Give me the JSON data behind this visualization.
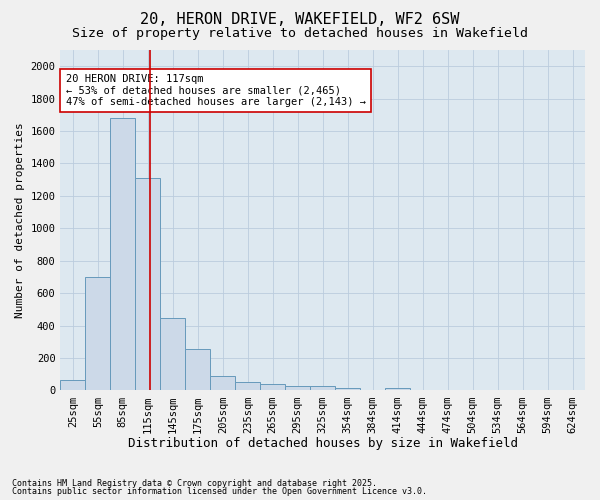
{
  "title": "20, HERON DRIVE, WAKEFIELD, WF2 6SW",
  "subtitle": "Size of property relative to detached houses in Wakefield",
  "xlabel": "Distribution of detached houses by size in Wakefield",
  "ylabel": "Number of detached properties",
  "footnote1": "Contains HM Land Registry data © Crown copyright and database right 2025.",
  "footnote2": "Contains public sector information licensed under the Open Government Licence v3.0.",
  "categories": [
    "25sqm",
    "55sqm",
    "85sqm",
    "115sqm",
    "145sqm",
    "175sqm",
    "205sqm",
    "235sqm",
    "265sqm",
    "295sqm",
    "325sqm",
    "354sqm",
    "384sqm",
    "414sqm",
    "444sqm",
    "474sqm",
    "504sqm",
    "534sqm",
    "564sqm",
    "594sqm",
    "624sqm"
  ],
  "values": [
    65,
    700,
    1680,
    1310,
    450,
    255,
    90,
    55,
    40,
    25,
    25,
    15,
    0,
    15,
    0,
    0,
    0,
    0,
    0,
    0,
    0
  ],
  "bar_color": "#ccd9e8",
  "bar_edge_color": "#6699bb",
  "bar_edge_width": 0.7,
  "red_line_color": "#cc0000",
  "annotation_text": "20 HERON DRIVE: 117sqm\n← 53% of detached houses are smaller (2,465)\n47% of semi-detached houses are larger (2,143) →",
  "annotation_box_color": "#ffffff",
  "annotation_box_edge_color": "#cc0000",
  "ylim": [
    0,
    2100
  ],
  "yticks": [
    0,
    200,
    400,
    600,
    800,
    1000,
    1200,
    1400,
    1600,
    1800,
    2000
  ],
  "grid_color": "#bbccdd",
  "plot_bg_color": "#dde8f0",
  "fig_bg_color": "#f0f0f0",
  "title_fontsize": 11,
  "subtitle_fontsize": 9.5,
  "xlabel_fontsize": 9,
  "ylabel_fontsize": 8,
  "tick_fontsize": 7.5,
  "annotation_fontsize": 7.5,
  "footnote_fontsize": 6
}
